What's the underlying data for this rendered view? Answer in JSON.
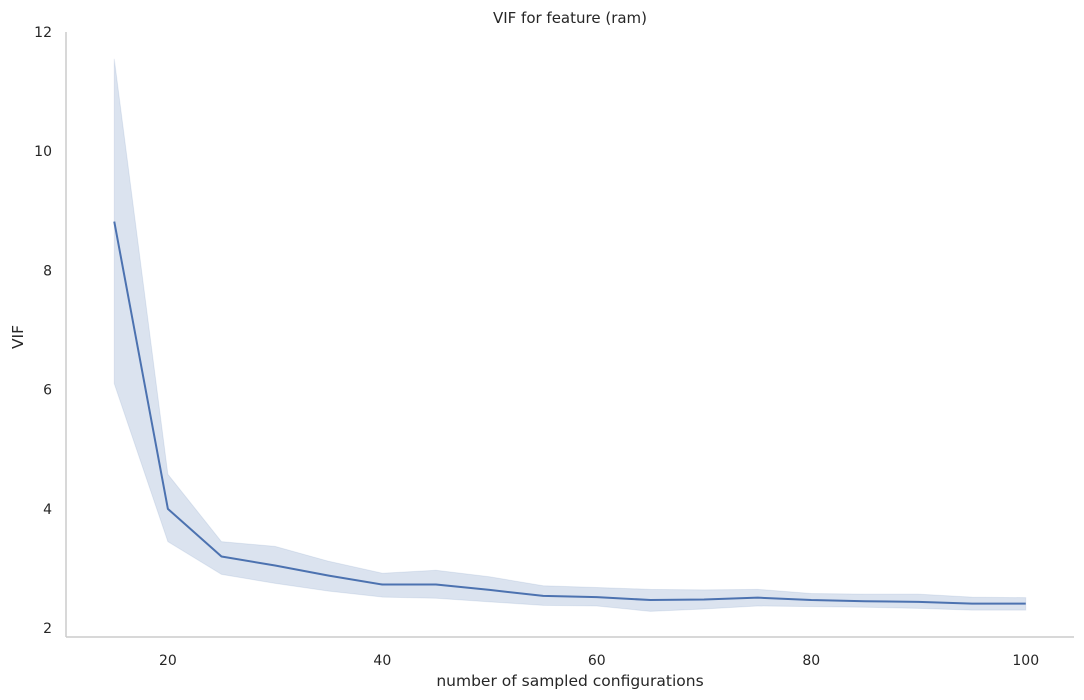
{
  "chart_data": {
    "type": "line",
    "title": "VIF for feature (ram)",
    "xlabel": "number of sampled configurations",
    "ylabel": "VIF",
    "xlim": [
      10.5,
      104.5
    ],
    "ylim": [
      1.85,
      12
    ],
    "xticks": [
      20,
      40,
      60,
      80,
      100
    ],
    "yticks": [
      2,
      4,
      6,
      8,
      10,
      12
    ],
    "grid": false,
    "series": [
      {
        "x": [
          15,
          20,
          25,
          30,
          35,
          40,
          45,
          50,
          55,
          60,
          65,
          70,
          75,
          80,
          85,
          90,
          95,
          100
        ],
        "y": [
          8.82,
          4.0,
          3.2,
          3.05,
          2.88,
          2.73,
          2.73,
          2.64,
          2.54,
          2.52,
          2.47,
          2.48,
          2.51,
          2.47,
          2.45,
          2.44,
          2.41,
          2.41
        ],
        "lower": [
          6.1,
          3.45,
          2.9,
          2.75,
          2.62,
          2.52,
          2.5,
          2.44,
          2.38,
          2.37,
          2.28,
          2.32,
          2.37,
          2.36,
          2.35,
          2.33,
          2.3,
          2.3
        ],
        "upper": [
          11.55,
          4.58,
          3.45,
          3.37,
          3.12,
          2.92,
          2.97,
          2.86,
          2.71,
          2.68,
          2.65,
          2.64,
          2.65,
          2.58,
          2.57,
          2.57,
          2.52,
          2.51
        ]
      }
    ],
    "colors": {
      "line": "#4c72b0",
      "band": "#4c72b0",
      "spine": "#cccccc"
    }
  }
}
